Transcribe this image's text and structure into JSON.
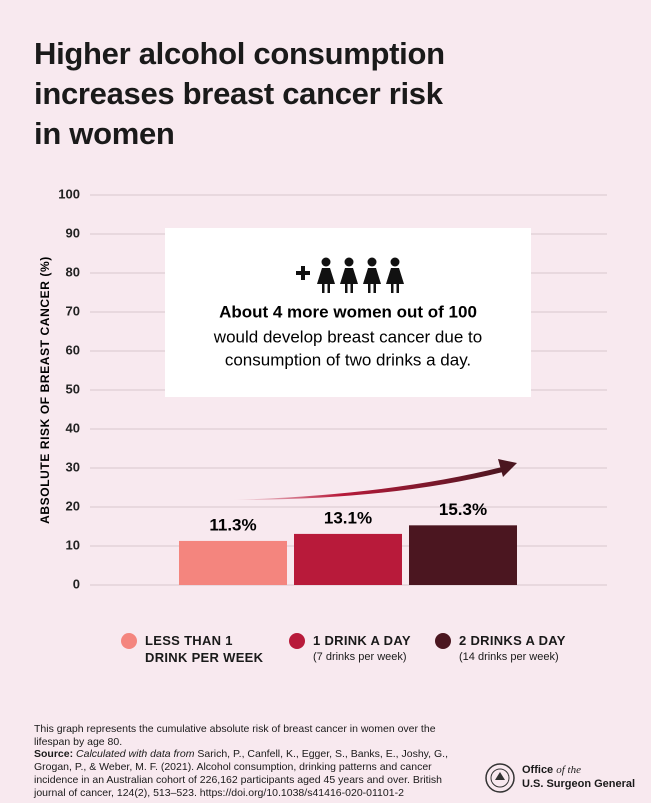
{
  "chart_data": {
    "type": "bar",
    "title": [
      "Higher alcohol consumption",
      "increases breast cancer risk",
      "in women"
    ],
    "y_label": "ABSOLUTE RISK OF BREAST CANCER (%)",
    "categories": [
      "LESS THAN 1 DRINK PER WEEK",
      "1 DRINK A DAY",
      "2 DRINKS A DAY"
    ],
    "category_notes": [
      null,
      "(7 drinks per week)",
      "(14 drinks per week)"
    ],
    "values": [
      11.3,
      13.1,
      15.3
    ],
    "value_labels": [
      "11.3%",
      "13.1%",
      "15.3%"
    ],
    "colors": [
      "#f4857e",
      "#b81a3a",
      "#4b1620"
    ],
    "ylim": [
      0,
      100
    ],
    "yticks": [
      0,
      10,
      20,
      30,
      40,
      50,
      60,
      70,
      80,
      90,
      100
    ],
    "grid": true,
    "annotation": {
      "headline": "About 4 more women out of 100",
      "body": [
        "would develop breast cancer due to",
        "consumption of two drinks a day."
      ]
    },
    "footer": {
      "note": "This graph represents the cumulative absolute risk of breast cancer in women over the lifespan by age 80.",
      "source_label": "Source:",
      "source_italic": "Calculated with data from",
      "source_text": "Sarich, P., Canfell, K., Egger, S., Banks, E., Joshy, G., Grogan, P., & Weber, M. F. (2021). Alcohol consumption, drinking patterns and cancer incidence in an Australian cohort of 226,162 participants aged 45 years and over. British journal of cancer, 124(2), 513–523. https://doi.org/10.1038/s41416-020-01101-2"
    },
    "logo": {
      "office": "Office",
      "of_the": "of the",
      "name": "U.S. Surgeon General"
    }
  }
}
